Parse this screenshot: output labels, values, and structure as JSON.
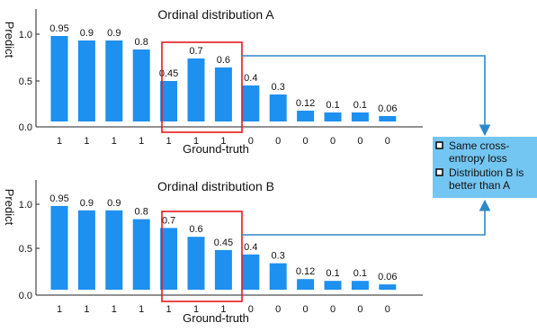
{
  "colors": {
    "bar": "#1E90F0",
    "highlight_box": "#E8191C",
    "arrow": "#2E88C8",
    "note_bg": "#74C6F2"
  },
  "note": {
    "line1a": "Same cross-",
    "line1b": "entropy loss",
    "line2a": "Distribution B is",
    "line2b": "better than A"
  },
  "chart_data": [
    {
      "type": "bar",
      "title": "Ordinal distribution A",
      "xlabel": "Ground-truth",
      "ylabel": "Predict",
      "ylim": [
        0,
        1.0
      ],
      "yticks": [
        "0.0",
        "0.5",
        "1.0"
      ],
      "categories": [
        "1",
        "1",
        "1",
        "1",
        "1",
        "1",
        "1",
        "0",
        "0",
        "0",
        "0",
        "0",
        "0"
      ],
      "values": [
        0.95,
        0.9,
        0.9,
        0.8,
        0.45,
        0.7,
        0.6,
        0.4,
        0.3,
        0.12,
        0.1,
        0.1,
        0.06
      ],
      "labels": [
        "0.95",
        "0.9",
        "0.9",
        "0.8",
        "0.45",
        "0.7",
        "0.6",
        "0.4",
        "0.3",
        "0.12",
        "0.1",
        "0.1",
        "0.06"
      ],
      "highlight_range": [
        4,
        6
      ]
    },
    {
      "type": "bar",
      "title": "Ordinal distribution B",
      "xlabel": "Ground-truth",
      "ylabel": "Predict",
      "ylim": [
        0,
        1.0
      ],
      "yticks": [
        "0.0",
        "0.5",
        "1.0"
      ],
      "categories": [
        "1",
        "1",
        "1",
        "1",
        "1",
        "1",
        "1",
        "0",
        "0",
        "0",
        "0",
        "0",
        "0"
      ],
      "values": [
        0.95,
        0.9,
        0.9,
        0.8,
        0.7,
        0.6,
        0.45,
        0.4,
        0.3,
        0.12,
        0.1,
        0.1,
        0.06
      ],
      "labels": [
        "0.95",
        "0.9",
        "0.9",
        "0.8",
        "0.7",
        "0.6",
        "0.45",
        "0.4",
        "0.3",
        "0.12",
        "0.1",
        "0.1",
        "0.06"
      ],
      "highlight_range": [
        4,
        6
      ]
    }
  ]
}
